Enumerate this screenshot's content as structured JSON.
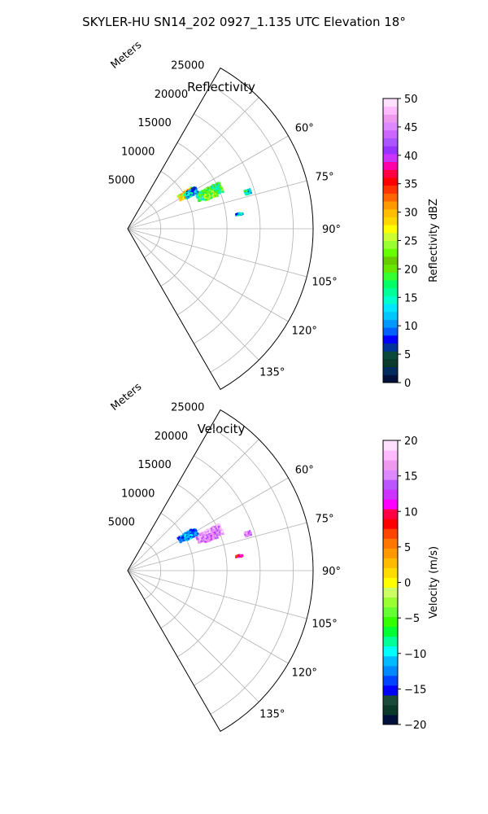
{
  "suptitle": "SKYLER-HU  SN14_202  0927_1.135 UTC Elevation 18°",
  "chart_data": [
    {
      "type": "polar-sector",
      "title": "Reflectivity",
      "range_label": "Meters",
      "range_ticks": [
        5000,
        10000,
        15000,
        20000,
        25000
      ],
      "range_max": 28000,
      "azimuth_range": [
        30,
        150
      ],
      "azimuth_tick_labels": [
        "60°",
        "75°",
        "90°",
        "105°",
        "120°",
        "135°"
      ],
      "azimuth_ticks": [
        60,
        75,
        90,
        105,
        120,
        135
      ],
      "grid": true,
      "colorbar": {
        "label": "Reflectivity dBZ",
        "min": 0,
        "max": 50,
        "ticks": [
          "0",
          "5",
          "10",
          "15",
          "20",
          "25",
          "30",
          "35",
          "40",
          "45",
          "50"
        ],
        "tick_values": [
          0,
          5,
          10,
          15,
          20,
          25,
          30,
          35,
          40,
          45,
          50
        ],
        "colormap": "pyart_NWSRef"
      },
      "echo_regions": [
        {
          "az": [
            57,
            62
          ],
          "range": [
            9000,
            11500
          ],
          "value": 26
        },
        {
          "az": [
            63,
            69
          ],
          "range": [
            11500,
            15500
          ],
          "value": 18
        },
        {
          "az": [
            66,
            70
          ],
          "range": [
            12500,
            14500
          ],
          "value": 22
        },
        {
          "az": [
            72,
            74
          ],
          "range": [
            18500,
            19500
          ],
          "value": 14
        },
        {
          "az": [
            82,
            83
          ],
          "range": [
            16500,
            17500
          ],
          "value": 13
        },
        {
          "az": [
            58,
            63
          ],
          "range": [
            10000,
            12000
          ],
          "value": 12
        }
      ]
    },
    {
      "type": "polar-sector",
      "title": "Velocity",
      "range_label": "Meters",
      "range_ticks": [
        5000,
        10000,
        15000,
        20000,
        25000
      ],
      "range_max": 28000,
      "azimuth_range": [
        30,
        150
      ],
      "azimuth_tick_labels": [
        "60°",
        "75°",
        "90°",
        "105°",
        "120°",
        "135°"
      ],
      "azimuth_ticks": [
        60,
        75,
        90,
        105,
        120,
        135
      ],
      "grid": true,
      "colorbar": {
        "label": "Velocity (m/s)",
        "min": -20,
        "max": 20,
        "ticks": [
          "−20",
          "−15",
          "−10",
          "−5",
          "0",
          "5",
          "10",
          "15",
          "20"
        ],
        "tick_values": [
          -20,
          -15,
          -10,
          -5,
          0,
          5,
          10,
          15,
          20
        ],
        "colormap": "pyart_BuDRd18"
      },
      "echo_regions": [
        {
          "az": [
            57,
            62
          ],
          "range": [
            9000,
            11500
          ],
          "value": -14
        },
        {
          "az": [
            63,
            69
          ],
          "range": [
            11500,
            15500
          ],
          "value": 16
        },
        {
          "az": [
            66,
            70
          ],
          "range": [
            12500,
            14500
          ],
          "value": 15
        },
        {
          "az": [
            72,
            74
          ],
          "range": [
            18500,
            19500
          ],
          "value": 15
        },
        {
          "az": [
            82,
            83
          ],
          "range": [
            16500,
            17500
          ],
          "value": 10
        },
        {
          "az": [
            58,
            63
          ],
          "range": [
            10000,
            12000
          ],
          "value": -12
        }
      ]
    }
  ]
}
